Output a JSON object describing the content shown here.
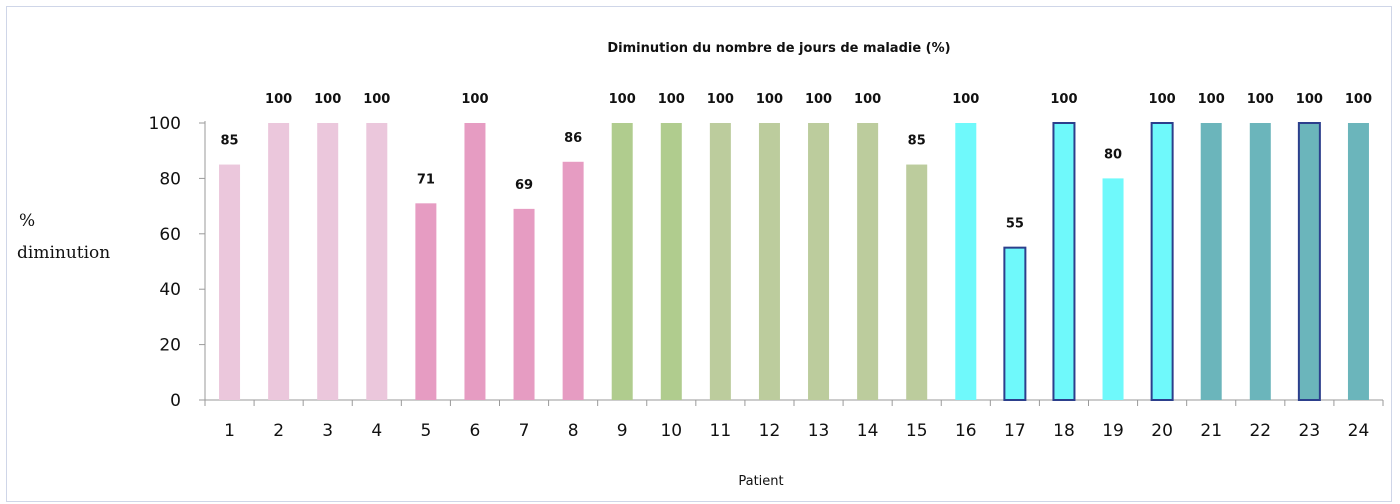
{
  "chart_data": {
    "type": "bar",
    "title": "Diminution du nombre de jours de maladie (%)",
    "xlabel": "Patient",
    "ylabel_lines": [
      "%",
      "diminution"
    ],
    "ylim": [
      0,
      100
    ],
    "yticks": [
      0,
      20,
      40,
      60,
      80,
      100
    ],
    "categories": [
      "1",
      "2",
      "3",
      "4",
      "5",
      "6",
      "7",
      "8",
      "9",
      "10",
      "11",
      "12",
      "13",
      "14",
      "15",
      "16",
      "17",
      "18",
      "19",
      "20",
      "21",
      "22",
      "23",
      "24"
    ],
    "values": [
      85,
      100,
      100,
      100,
      71,
      100,
      69,
      86,
      100,
      100,
      100,
      100,
      100,
      100,
      85,
      100,
      55,
      100,
      80,
      100,
      100,
      100,
      100,
      100
    ],
    "data_labels": [
      "85",
      "100",
      "100",
      "100",
      "71",
      "100",
      "69",
      "86",
      "100",
      "100",
      "100",
      "100",
      "100",
      "100",
      "85",
      "100",
      "55",
      "100",
      "80",
      "100",
      "100",
      "100",
      "100",
      "100"
    ],
    "colors": [
      "#ebc7dc",
      "#ebc7dc",
      "#ebc7dc",
      "#ebc7dc",
      "#e69cc2",
      "#e69cc2",
      "#e69cc2",
      "#e69cc2",
      "#b0cc8e",
      "#b0cc8e",
      "#bccc9d",
      "#bccc9d",
      "#bccc9d",
      "#bccc9d",
      "#bccc9d",
      "#6ff9fb",
      "#6ff9fb",
      "#6ff9fb",
      "#6ff9fb",
      "#6ff9fb",
      "#6bb5bb",
      "#6bb5bb",
      "#6bb5bb",
      "#6bb5bb"
    ],
    "outlined": [
      false,
      false,
      false,
      false,
      false,
      false,
      false,
      false,
      false,
      false,
      false,
      false,
      false,
      false,
      false,
      false,
      true,
      true,
      false,
      true,
      false,
      false,
      true,
      false
    ],
    "outline_color": "#2c3f8c",
    "grid": false,
    "legend": "none"
  }
}
